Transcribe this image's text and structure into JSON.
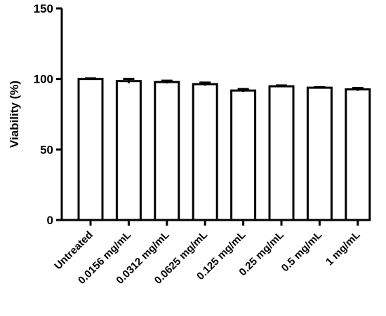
{
  "chart_data": {
    "type": "bar",
    "title": "",
    "xlabel": "",
    "ylabel": "Viability (%)",
    "ylim": [
      0,
      150
    ],
    "yticks": [
      0,
      50,
      100,
      150
    ],
    "grid": false,
    "error_bars": true,
    "categories": [
      "Untreated",
      "0.0156 mg/mL",
      "0.0312 mg/mL",
      "0.0625 mg/mL",
      "0.125 mg/mL",
      "0.25 mg/mL",
      "0.5 mg/mL",
      "1 mg/mL"
    ],
    "values": [
      100,
      98.5,
      97.8,
      96.3,
      91.8,
      94.8,
      93.8,
      92.6
    ],
    "errors": [
      0.4,
      1.6,
      1.0,
      1.1,
      1.0,
      0.6,
      0.4,
      1.0
    ],
    "bar_fill": "#ffffff",
    "bar_stroke": "#000000"
  }
}
